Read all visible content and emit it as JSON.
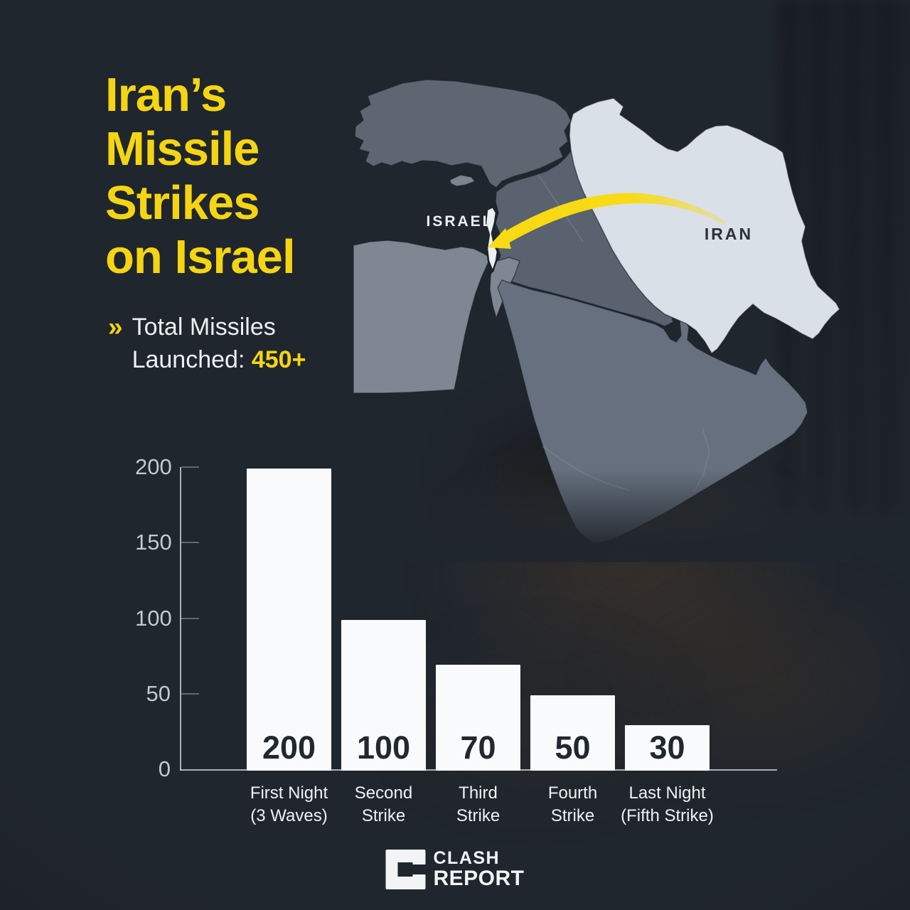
{
  "header": {
    "title_lines": [
      "Iran’s",
      "Missile",
      "Strikes",
      "on Israel"
    ],
    "subtitle": {
      "chevron": "»",
      "line1": "Total Missiles",
      "line2_label": "Launched: ",
      "line2_value": "450+"
    }
  },
  "map": {
    "labels": [
      {
        "text": "ISRAEL",
        "color": "#EEF1F4"
      },
      {
        "text": "IRAN",
        "color": "#2A313A"
      }
    ],
    "arrow": "missile-path-iran-to-israel",
    "highlight_fills": {
      "iran": "#DAE0E7",
      "israel": "#EDF0F3"
    }
  },
  "chart_data": {
    "type": "bar",
    "title": "",
    "xlabel": "",
    "ylabel": "",
    "categories": [
      [
        "First Night",
        "(3 Waves)"
      ],
      [
        "Second",
        "Strike"
      ],
      [
        "Third",
        "Strike"
      ],
      [
        "Fourth",
        "Strike"
      ],
      [
        "Last Night",
        "(Fifth Strike)"
      ]
    ],
    "values": [
      200,
      100,
      70,
      50,
      30
    ],
    "yticks": [
      0,
      50,
      100,
      150,
      200
    ],
    "ylim": [
      0,
      200
    ],
    "grid": false,
    "legend": false,
    "bar_color": "#F8FAFB",
    "value_label_color": "#222831"
  },
  "footer": {
    "brand_line1": "CLASH",
    "brand_line2": "REPORT"
  },
  "colors": {
    "background": "#20262D",
    "accent_yellow": "#F5D513",
    "arrow_yellow": "#F8DB12"
  }
}
